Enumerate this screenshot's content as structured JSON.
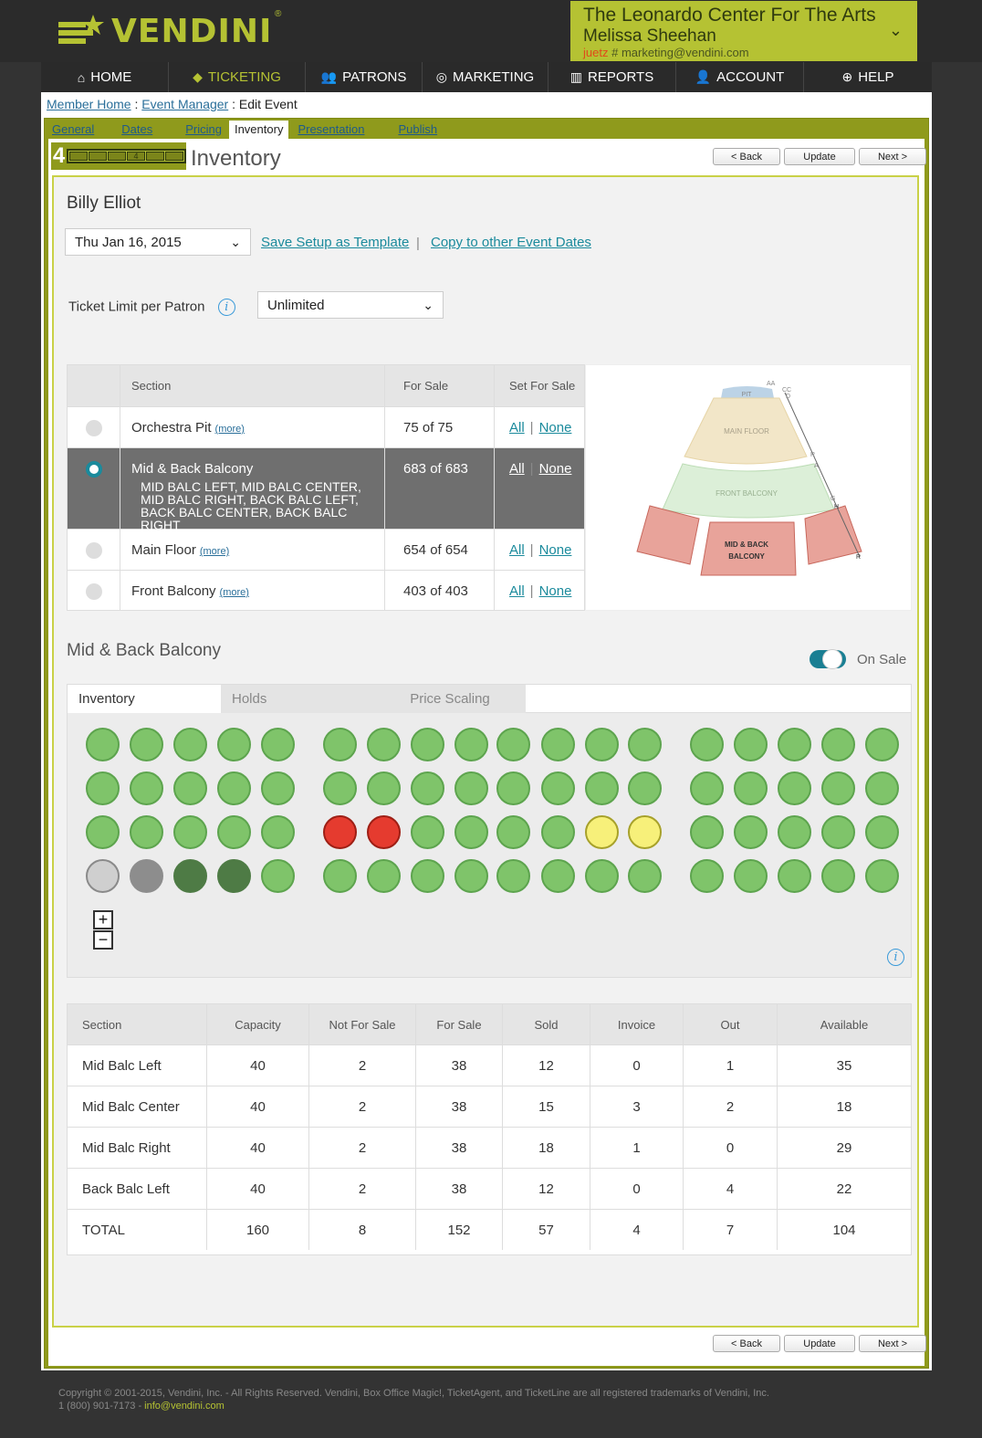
{
  "brand": {
    "name": "VENDINI",
    "reg": "®",
    "accent": "#b5c233"
  },
  "account": {
    "organization": "The Leonardo Center For The Arts",
    "user": "Melissa Sheehan",
    "nickname": "juetz",
    "email_sep": " # ",
    "email": "marketing@vendini.com",
    "chevron": "chevron-down-icon"
  },
  "nav": [
    {
      "label": "HOME",
      "icon": "⌂"
    },
    {
      "label": "TICKETING",
      "icon": "◆"
    },
    {
      "label": "PATRONS",
      "icon": "👥"
    },
    {
      "label": "MARKETING",
      "icon": "◎"
    },
    {
      "label": "REPORTS",
      "icon": "▥"
    },
    {
      "label": "ACCOUNT",
      "icon": "👤"
    },
    {
      "label": "HELP",
      "icon": "⊕"
    }
  ],
  "breadcrumb": {
    "home": "Member Home",
    "sep": " : ",
    "manager": "Event Manager",
    "current": "Edit Event"
  },
  "subtabs": [
    "General",
    "Dates",
    "Pricing",
    "Inventory",
    "Presentation",
    "Publish"
  ],
  "step": {
    "number": "4",
    "active_segment": "4",
    "title": "Inventory"
  },
  "buttons": {
    "back": "< Back",
    "update": "Update",
    "next": "Next >"
  },
  "event": {
    "name": "Billy Elliot",
    "date": "Thu Jan 16, 2015",
    "save_template": "Save Setup as Template",
    "copy_dates": "Copy to other Event Dates",
    "link_sep": "|",
    "limit_label": "Ticket Limit per Patron",
    "limit_value": "Unlimited"
  },
  "sections": {
    "headers": {
      "section": "Section",
      "for_sale": "For Sale",
      "set_for_sale": "Set For Sale"
    },
    "all": "All",
    "none": "None",
    "more": "(more)",
    "rows": [
      {
        "name": "Orchestra Pit",
        "for_sale": "75 of 75"
      },
      {
        "name": "Mid & Back Balcony",
        "for_sale": "683 of 683",
        "sub": "MID BALC LEFT, MID BALC CENTER, MID BALC RIGHT, BACK BALC LEFT, BACK BALC CENTER, BACK BALC RIGHT"
      },
      {
        "name": "Main Floor",
        "for_sale": "654 of 654"
      },
      {
        "name": "Front Balcony",
        "for_sale": "403 of 403"
      }
    ]
  },
  "seatmap_labels": {
    "pit": "PIT",
    "main_floor": "MAIN FLOOR",
    "front_balcony": "FRONT BALCONY",
    "mid_back_1": "MID & BACK",
    "mid_back_2": "BALCONY",
    "row_aa": "AA",
    "row_cc": "CC",
    "row_d": "D",
    "row_r1": "R",
    "row_a": "A",
    "row_g": "G",
    "row_h": "H",
    "row_r2": "R"
  },
  "balcony": {
    "title": "Mid & Back Balcony",
    "on_sale": "On Sale",
    "tabs": [
      "Inventory",
      "Holds",
      "Price Scaling"
    ],
    "zoom_in": "+",
    "zoom_out": "−"
  },
  "summary": {
    "headers": [
      "Section",
      "Capacity",
      "Not For Sale",
      "For Sale",
      "Sold",
      "Invoice",
      "Out",
      "Available"
    ],
    "rows": [
      [
        "Mid Balc Left",
        "40",
        "2",
        "38",
        "12",
        "0",
        "1",
        "35"
      ],
      [
        "Mid Balc Center",
        "40",
        "2",
        "38",
        "15",
        "3",
        "2",
        "18"
      ],
      [
        "Mid Balc Right",
        "40",
        "2",
        "38",
        "18",
        "1",
        "0",
        "29"
      ],
      [
        "Back Balc Left",
        "40",
        "2",
        "38",
        "12",
        "0",
        "4",
        "22"
      ],
      [
        "TOTAL",
        "160",
        "8",
        "152",
        "57",
        "4",
        "7",
        "104"
      ]
    ]
  },
  "footer": {
    "copyright": "Copyright © 2001-2015, Vendini, Inc. - All Rights Reserved. Vendini, Box Office Magic!, TicketAgent, and TicketLine are all registered trademarks of Vendini, Inc.",
    "phone": "1 (800) 901-7173 - ",
    "email": "info@vendini.com"
  }
}
